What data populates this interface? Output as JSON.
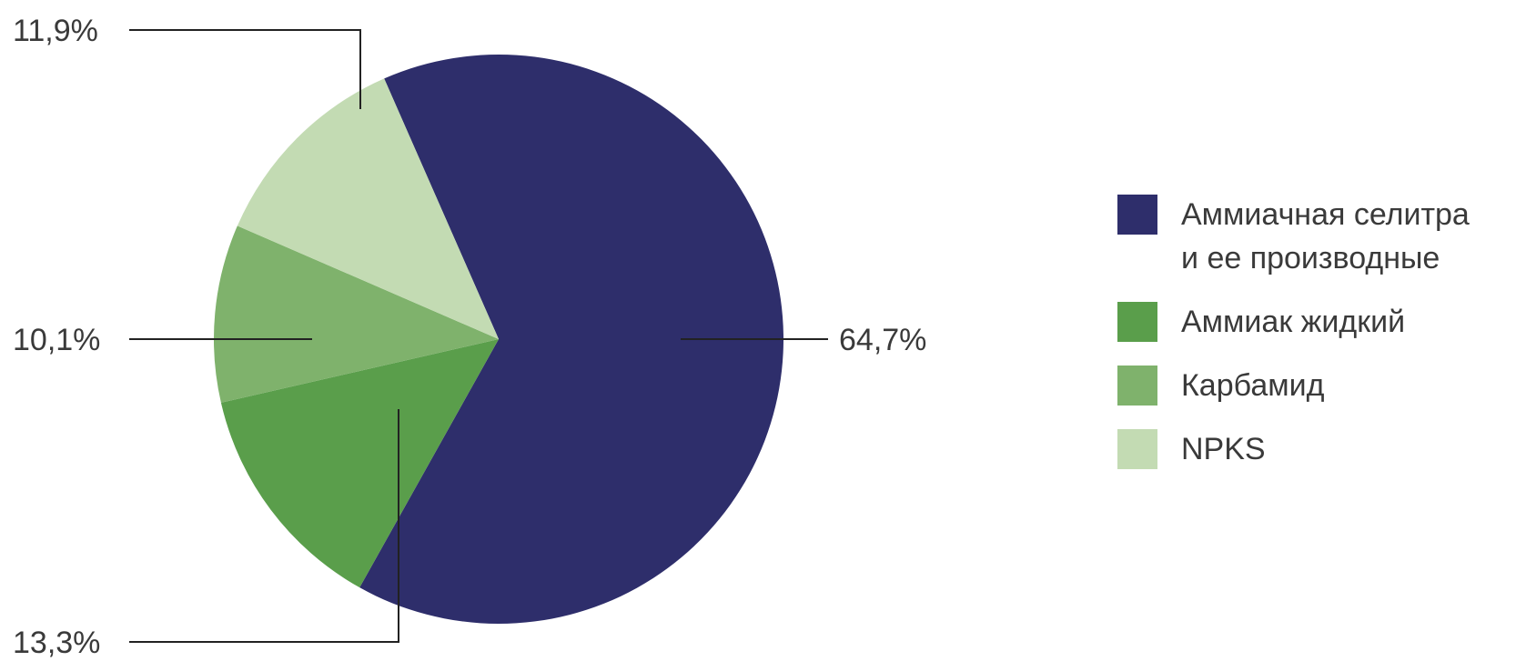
{
  "chart_data": {
    "type": "pie",
    "slices": [
      {
        "label": "Аммиачная селитра\nи ее производные",
        "value": 64.7,
        "value_label": "64,7%",
        "color": "#2e2e6b"
      },
      {
        "label": "Аммиак жидкий",
        "value": 13.3,
        "value_label": "13,3%",
        "color": "#5a9e4b"
      },
      {
        "label": "Карбамид",
        "value": 10.1,
        "value_label": "10,1%",
        "color": "#7fb26c"
      },
      {
        "label": "NPKS",
        "value": 11.9,
        "value_label": "11,9%",
        "color": "#c3dbb3"
      }
    ],
    "legend_position": "right"
  }
}
